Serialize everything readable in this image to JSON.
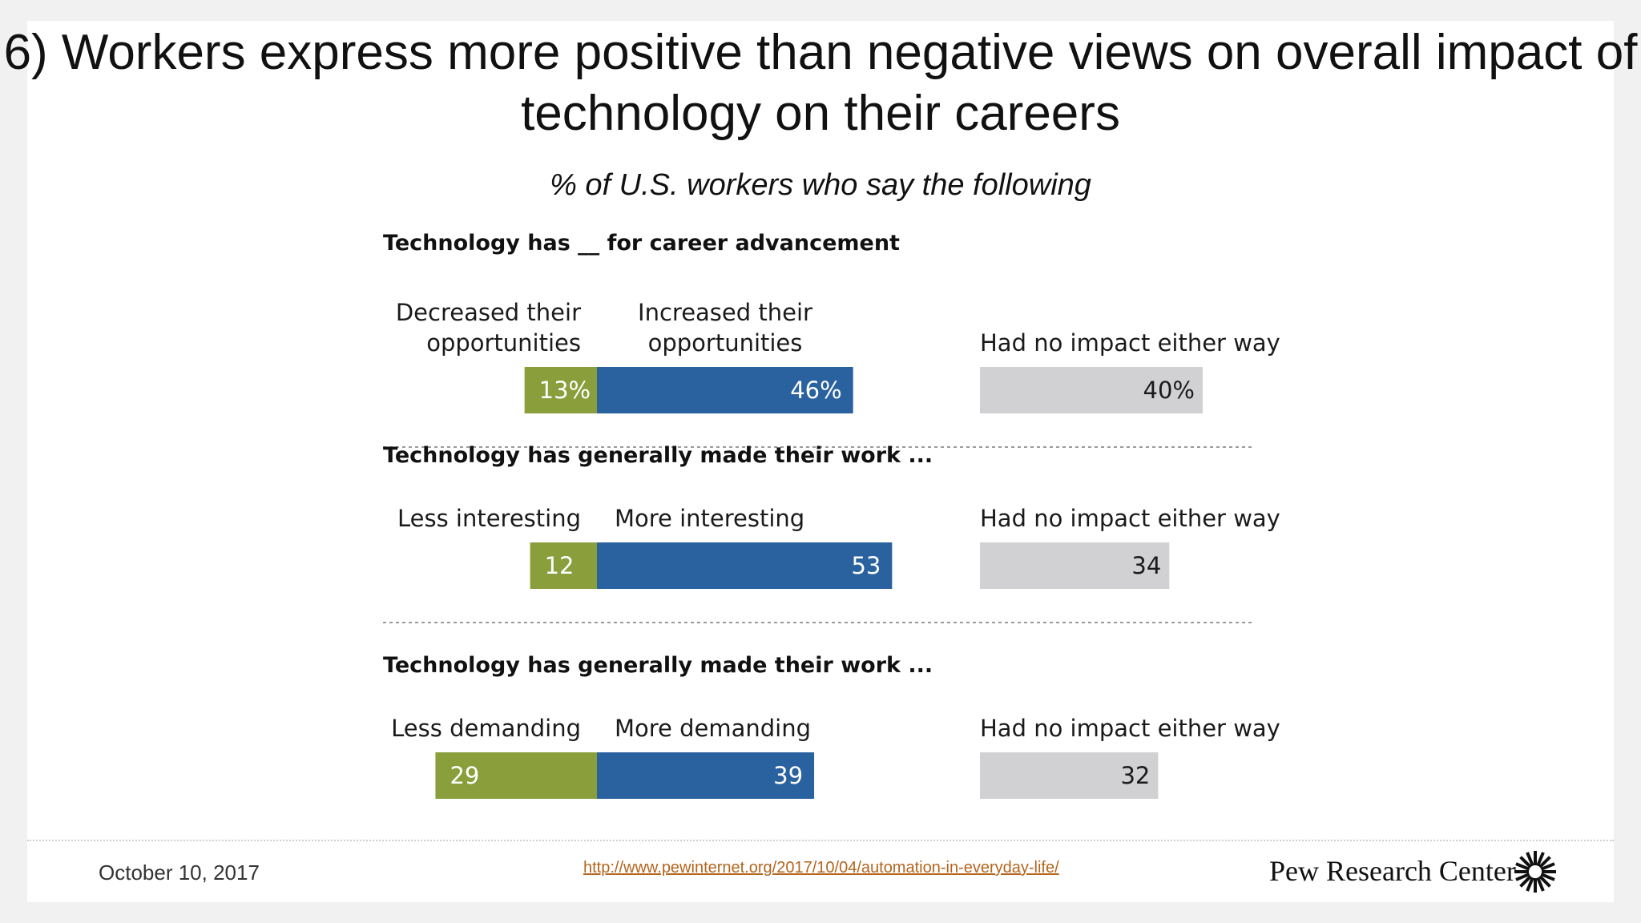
{
  "slide": {
    "title": "6) Workers express more positive than negative views on overall impact of technology on their careers",
    "subtitle": "% of U.S. workers who say the following",
    "footer_date": "October 10, 2017",
    "footer_url": "http://www.pewinternet.org/2017/10/04/automation-in-everyday-life/",
    "brand": "Pew Research Center",
    "logo_icon": "sunburst-logo-icon"
  },
  "colors": {
    "negative": "#8a9e3b",
    "positive": "#2a62a0",
    "neutral": "#d1d1d3",
    "divider": "#9a9a9a"
  },
  "chart_data": {
    "type": "bar",
    "orientation": "horizontal",
    "layout": "diverging with separate neutral bar",
    "value_suffix_first_row": "%",
    "sections": [
      {
        "heading": "Technology has __ for career advancement",
        "negative": {
          "label": [
            "Decreased their",
            "opportunities"
          ],
          "value": 13,
          "display": "13%"
        },
        "positive": {
          "label": [
            "Increased their",
            "opportunities"
          ],
          "value": 46,
          "display": "46%"
        },
        "neutral": {
          "label": [
            "Had no impact either way"
          ],
          "value": 40,
          "display": "40%"
        }
      },
      {
        "heading": "Technology has generally made their work ...",
        "negative": {
          "label": [
            "Less interesting"
          ],
          "value": 12,
          "display": "12"
        },
        "positive": {
          "label": [
            "More interesting"
          ],
          "value": 53,
          "display": "53"
        },
        "neutral": {
          "label": [
            "Had no impact either way"
          ],
          "value": 34,
          "display": "34"
        }
      },
      {
        "heading": "Technology has generally made their work ...",
        "negative": {
          "label": [
            "Less demanding"
          ],
          "value": 29,
          "display": "29"
        },
        "positive": {
          "label": [
            "More demanding"
          ],
          "value": 39,
          "display": "39"
        },
        "neutral": {
          "label": [
            "Had no impact either way"
          ],
          "value": 32,
          "display": "32"
        }
      }
    ]
  }
}
